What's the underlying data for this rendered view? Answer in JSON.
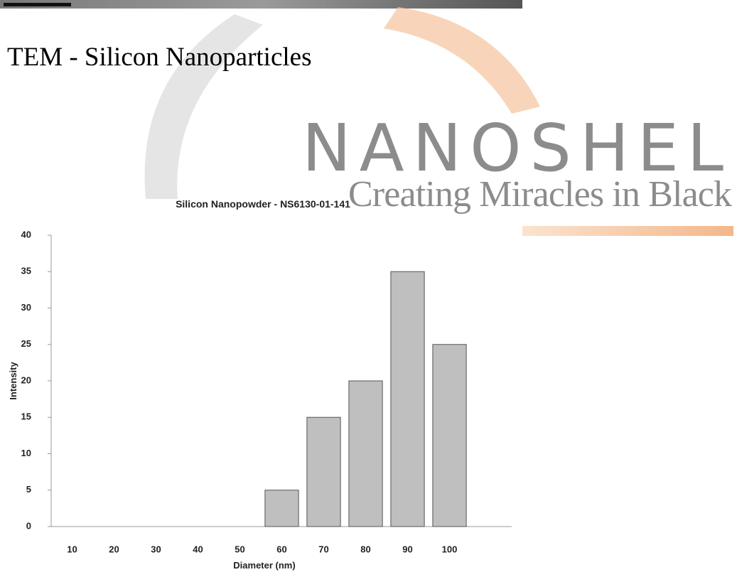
{
  "header": {
    "title": "TEM - Silicon Nanoparticles"
  },
  "watermark": {
    "brand": "NANOSHEL",
    "tagline": "Creating Miracles in Black"
  },
  "chart_data": {
    "type": "bar",
    "title": "Silicon Nanopowder - NS6130-01-141",
    "x_label": "Diameter (nm)",
    "y_label": "Intensity",
    "categories": [
      "10",
      "20",
      "30",
      "40",
      "50",
      "60",
      "70",
      "80",
      "90",
      "100"
    ],
    "values": [
      0,
      0,
      0,
      0,
      0,
      5,
      15,
      20,
      35,
      25
    ],
    "color": "#bfbfbf",
    "ylim": [
      0,
      40
    ],
    "yticks": [
      0,
      5,
      10,
      15,
      20,
      25,
      30,
      35,
      40
    ],
    "grid": false
  }
}
